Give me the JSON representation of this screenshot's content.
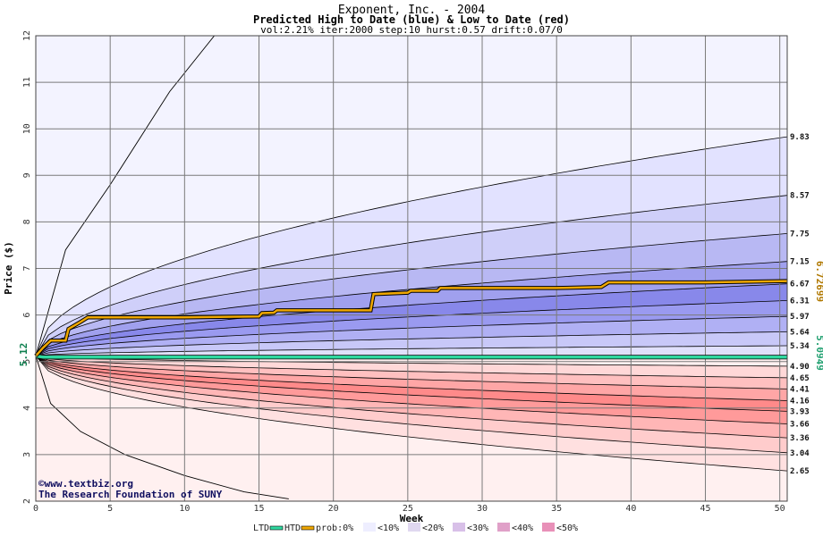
{
  "chart_data": {
    "type": "area",
    "title": "Exponent, Inc. - 2004",
    "subtitle": "Predicted High to Date (blue) &  Low to Date (red)",
    "params": "vol:2.21% iter:2000 step:10 hurst:0.57 drift:0.07/0",
    "xlabel": "Week",
    "ylabel": "Price ($)",
    "xlim": [
      0,
      50.5
    ],
    "ylim": [
      2,
      12
    ],
    "x_ticks": [
      0,
      5,
      10,
      15,
      20,
      25,
      30,
      35,
      40,
      45,
      50
    ],
    "y_ticks": [
      2,
      3,
      4,
      5,
      6,
      7,
      8,
      9,
      10,
      11,
      12
    ],
    "grid": true,
    "start_price": 5.12,
    "start_label": "5.12",
    "htd_right_label": "6.72699",
    "ltd_right_label": "5.0949",
    "high_band_end_values": [
      9.83,
      8.57,
      7.75,
      7.15,
      6.67,
      6.31,
      5.97,
      5.64,
      5.34
    ],
    "high_band_end_labels": [
      "9.83",
      "8.57",
      "7.75",
      "7.15",
      "6.67",
      "6.31",
      "5.97",
      "5.64",
      "5.34"
    ],
    "low_band_end_values": [
      4.9,
      4.65,
      4.41,
      4.16,
      3.93,
      3.66,
      3.36,
      3.04,
      2.65
    ],
    "low_band_end_labels": [
      "4.90",
      "4.65",
      "4.41",
      "4.16",
      "3.93",
      "3.66",
      "3.36",
      "3.04",
      "2.65"
    ],
    "htd_series": {
      "name": "HTD",
      "x": [
        0,
        0.5,
        1,
        2,
        2.2,
        3,
        3.5,
        5,
        10,
        15,
        15.2,
        16,
        16.2,
        20,
        22.5,
        22.7,
        25,
        25.2,
        27,
        27.2,
        30,
        35,
        38,
        38.5,
        45,
        50.5
      ],
      "y": [
        5.12,
        5.3,
        5.45,
        5.45,
        5.7,
        5.85,
        5.95,
        5.95,
        5.95,
        5.97,
        6.04,
        6.05,
        6.1,
        6.1,
        6.1,
        6.45,
        6.48,
        6.52,
        6.52,
        6.58,
        6.58,
        6.58,
        6.6,
        6.7,
        6.7,
        6.73
      ]
    },
    "ltd_series": {
      "name": "LTD",
      "x": [
        0,
        0.5,
        50.5
      ],
      "y": [
        5.12,
        5.095,
        5.095
      ]
    },
    "outer_high_curve": {
      "x": [
        0,
        2,
        5,
        9,
        12
      ],
      "y": [
        5.12,
        7.4,
        8.8,
        10.8,
        12
      ]
    },
    "outer_low_curve": {
      "x": [
        0,
        1,
        3,
        6,
        10,
        14,
        17
      ],
      "y": [
        5.12,
        4.1,
        3.5,
        3.0,
        2.55,
        2.2,
        2.05
      ]
    },
    "legend": {
      "ltd": "LTD",
      "htd": "HTD",
      "prob_label": "prob:0%",
      "bins": [
        "<10%",
        "<20%",
        "<30%",
        "<40%",
        "<50%"
      ]
    },
    "legend_placement": "bottom"
  },
  "colors": {
    "htd": "#f0a800",
    "ltd": "#30d8a0",
    "grid": "#7a7a7a",
    "high_bands": [
      "#f3f3ff",
      "#e2e2ff",
      "#cfcff9",
      "#b8b8f3",
      "#a0a0ee",
      "#8888ea",
      "#9a9af0",
      "#b0b0f4",
      "#c8c8f8",
      "#e0e0fc"
    ],
    "low_bands": [
      "#fff0f0",
      "#ffe0e0",
      "#ffcccc",
      "#ffb6b6",
      "#ff9a9a",
      "#ff8a8a",
      "#ffa6a6",
      "#ffc0c0",
      "#ffd8d8",
      "#fff0f0"
    ],
    "legend_swatches": [
      "#eeeeff",
      "#e0d8f0",
      "#d8c0e8",
      "#e0a0c8",
      "#e890b8"
    ]
  },
  "credits": {
    "site": "©www.textbiz.org",
    "org": "The Research Foundation of SUNY"
  }
}
